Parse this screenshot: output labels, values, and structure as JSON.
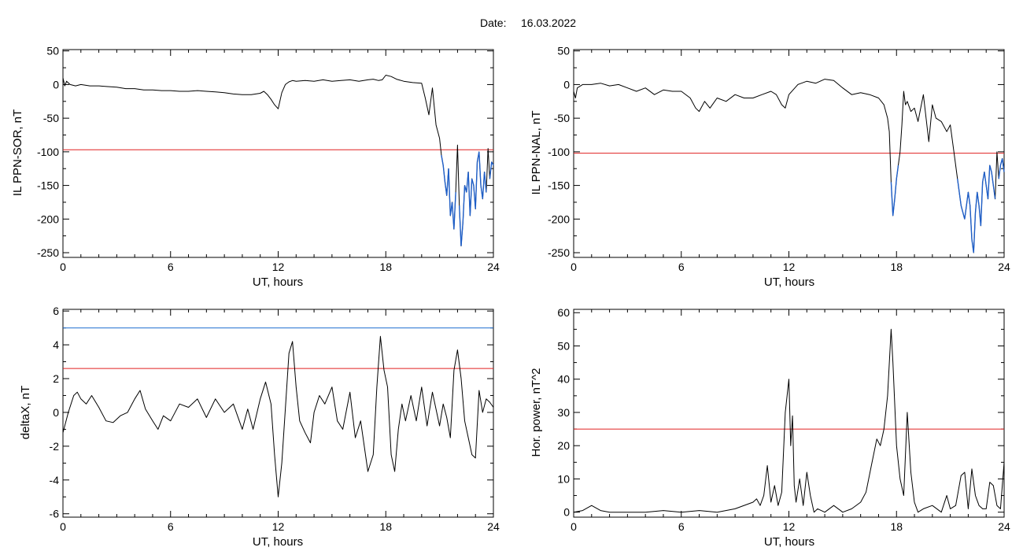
{
  "header": {
    "date_label": "Date:",
    "date_value": "16.03.2022"
  },
  "colors": {
    "trace": "#000000",
    "threshold_red": "#e02020",
    "threshold_blue": "#1f6fd0",
    "highlight_blue": "#1f5fc8",
    "frame": "#000000"
  },
  "chart_data": [
    {
      "id": "sor",
      "type": "line",
      "xlabel": "UT, hours",
      "ylabel": "IL PPN-SOR, nT",
      "xlim": [
        0,
        24
      ],
      "ylim": [
        -257,
        52
      ],
      "xticks": [
        "0",
        "6",
        "12",
        "18",
        "24"
      ],
      "yticks": [
        "50",
        "0",
        "-50",
        "-100",
        "-150",
        "-200",
        "-250"
      ],
      "threshold_red": -97,
      "highlight_below": -97,
      "x": [
        0,
        0.1,
        0.2,
        0.4,
        0.7,
        1,
        1.5,
        2,
        2.5,
        3,
        3.5,
        4,
        4.5,
        5,
        5.5,
        6,
        6.5,
        7,
        7.5,
        8,
        8.5,
        9,
        9.5,
        10,
        10.5,
        11,
        11.2,
        11.4,
        11.6,
        11.8,
        12,
        12.2,
        12.4,
        12.6,
        12.8,
        13,
        13.5,
        14,
        14.5,
        15,
        15.5,
        16,
        16.5,
        17,
        17.3,
        17.6,
        17.8,
        18,
        18.3,
        18.6,
        19,
        19.5,
        20,
        20.2,
        20.4,
        20.6,
        20.8,
        21,
        21.1,
        21.2,
        21.3,
        21.4,
        21.5,
        21.6,
        21.7,
        21.8,
        21.9,
        22,
        22.1,
        22.2,
        22.3,
        22.4,
        22.5,
        22.6,
        22.7,
        22.8,
        22.9,
        23,
        23.1,
        23.2,
        23.3,
        23.4,
        23.5,
        23.6,
        23.7,
        23.8,
        23.9,
        24
      ],
      "y": [
        10,
        -2,
        5,
        0,
        -2,
        0,
        -2,
        -2,
        -3,
        -4,
        -6,
        -6,
        -8,
        -8,
        -9,
        -9,
        -10,
        -10,
        -9,
        -10,
        -11,
        -12,
        -14,
        -15,
        -15,
        -13,
        -10,
        -15,
        -22,
        -30,
        -36,
        -12,
        0,
        4,
        6,
        5,
        6,
        5,
        7,
        5,
        6,
        7,
        5,
        7,
        8,
        6,
        7,
        14,
        12,
        8,
        5,
        3,
        2,
        -20,
        -45,
        -5,
        -60,
        -80,
        -105,
        -120,
        -145,
        -165,
        -125,
        -195,
        -175,
        -215,
        -160,
        -90,
        -180,
        -240,
        -205,
        -150,
        -160,
        -130,
        -195,
        -140,
        -150,
        -185,
        -115,
        -100,
        -150,
        -170,
        -130,
        -160,
        -95,
        -140,
        -115,
        -120
      ]
    },
    {
      "id": "nal",
      "type": "line",
      "xlabel": "UT, hours",
      "ylabel": "IL PPN-NAL, nT",
      "xlim": [
        0,
        24
      ],
      "ylim": [
        -257,
        52
      ],
      "xticks": [
        "0",
        "6",
        "12",
        "18",
        "24"
      ],
      "yticks": [
        "50",
        "0",
        "-50",
        "-100",
        "-150",
        "-200",
        "-250"
      ],
      "threshold_red": -102,
      "highlight_below": -102,
      "x": [
        0,
        0.1,
        0.2,
        0.5,
        1,
        1.5,
        2,
        2.5,
        3,
        3.5,
        4,
        4.5,
        5,
        5.5,
        6,
        6.5,
        6.8,
        7,
        7.3,
        7.6,
        8,
        8.5,
        9,
        9.5,
        10,
        10.5,
        11,
        11.3,
        11.6,
        11.8,
        12,
        12.5,
        13,
        13.5,
        14,
        14.5,
        15,
        15.5,
        16,
        16.5,
        17,
        17.3,
        17.5,
        17.6,
        17.7,
        17.8,
        17.9,
        18,
        18.1,
        18.2,
        18.3,
        18.4,
        18.5,
        18.6,
        18.8,
        19,
        19.2,
        19.5,
        19.8,
        20,
        20.2,
        20.5,
        20.8,
        21,
        21.2,
        21.4,
        21.6,
        21.8,
        22,
        22.1,
        22.2,
        22.3,
        22.4,
        22.5,
        22.6,
        22.7,
        22.8,
        22.9,
        23,
        23.1,
        23.2,
        23.3,
        23.4,
        23.5,
        23.6,
        23.7,
        23.8,
        23.9,
        24
      ],
      "y": [
        -10,
        -20,
        -5,
        0,
        0,
        2,
        -2,
        0,
        -5,
        -10,
        -5,
        -15,
        -8,
        -10,
        -10,
        -20,
        -35,
        -40,
        -25,
        -35,
        -20,
        -25,
        -15,
        -20,
        -20,
        -15,
        -10,
        -15,
        -30,
        -35,
        -15,
        0,
        5,
        2,
        8,
        6,
        -5,
        -15,
        -12,
        -15,
        -20,
        -30,
        -50,
        -70,
        -145,
        -195,
        -170,
        -140,
        -120,
        -100,
        -60,
        -10,
        -30,
        -25,
        -40,
        -35,
        -55,
        -15,
        -85,
        -30,
        -50,
        -55,
        -70,
        -60,
        -100,
        -140,
        -180,
        -200,
        -160,
        -180,
        -230,
        -250,
        -190,
        -160,
        -180,
        -210,
        -145,
        -130,
        -150,
        -170,
        -120,
        -130,
        -150,
        -170,
        -100,
        -140,
        -120,
        -110,
        -130
      ]
    },
    {
      "id": "deltax",
      "type": "line",
      "xlabel": "UT, hours",
      "ylabel": "deltaX, nT",
      "xlim": [
        0,
        24
      ],
      "ylim": [
        -6.2,
        6.1
      ],
      "xticks": [
        "0",
        "6",
        "12",
        "18",
        "24"
      ],
      "yticks": [
        "6",
        "4",
        "2",
        "0",
        "-2",
        "-4",
        "-6"
      ],
      "threshold_red": 2.6,
      "threshold_blue": 5.0,
      "x": [
        0,
        0.3,
        0.6,
        0.8,
        1,
        1.3,
        1.6,
        2,
        2.4,
        2.8,
        3.2,
        3.6,
        4,
        4.3,
        4.6,
        5,
        5.3,
        5.6,
        6,
        6.5,
        7,
        7.5,
        8,
        8.5,
        9,
        9.5,
        10,
        10.3,
        10.6,
        11,
        11.3,
        11.6,
        11.8,
        12,
        12.2,
        12.4,
        12.6,
        12.8,
        13,
        13.2,
        13.5,
        13.8,
        14,
        14.3,
        14.6,
        15,
        15.3,
        15.6,
        16,
        16.3,
        16.6,
        17,
        17.3,
        17.5,
        17.7,
        17.9,
        18.1,
        18.3,
        18.5,
        18.7,
        18.9,
        19.1,
        19.4,
        19.7,
        20,
        20.3,
        20.6,
        21,
        21.2,
        21.4,
        21.6,
        21.8,
        22,
        22.2,
        22.4,
        22.6,
        22.8,
        23,
        23.2,
        23.4,
        23.6,
        23.8,
        24
      ],
      "y": [
        -1.2,
        0,
        1,
        1.2,
        0.8,
        0.5,
        1.0,
        0.3,
        -0.5,
        -0.6,
        -0.2,
        0,
        0.8,
        1.3,
        0.2,
        -0.5,
        -1.0,
        -0.2,
        -0.5,
        0.5,
        0.3,
        0.8,
        -0.3,
        0.8,
        0,
        0.5,
        -1.0,
        0.2,
        -1.0,
        0.8,
        1.8,
        0.5,
        -2.5,
        -5.0,
        -3.0,
        0.2,
        3.5,
        4.2,
        1.5,
        -0.5,
        -1.2,
        -1.8,
        0,
        1.0,
        0.5,
        1.5,
        -0.5,
        -1.0,
        1.2,
        -1.5,
        -0.5,
        -3.5,
        -2.5,
        1.5,
        4.5,
        2.5,
        1.5,
        -2.5,
        -3.5,
        -1.0,
        0.5,
        -0.5,
        1.0,
        -0.5,
        1.5,
        -0.8,
        1.2,
        -0.8,
        0.5,
        -0.3,
        -1.5,
        2.5,
        3.7,
        2.0,
        -0.5,
        -1.5,
        -2.5,
        -2.7,
        1.3,
        0,
        0.8,
        0.6,
        0.3
      ]
    },
    {
      "id": "power",
      "type": "line",
      "xlabel": "UT, hours",
      "ylabel": "Hor. power, nT^2",
      "xlim": [
        0,
        24
      ],
      "ylim": [
        -1.5,
        61
      ],
      "xticks": [
        "0",
        "6",
        "12",
        "18",
        "24"
      ],
      "yticks": [
        "60",
        "50",
        "40",
        "30",
        "20",
        "10",
        "0"
      ],
      "threshold_red": 25,
      "x": [
        0,
        0.5,
        1,
        1.5,
        2,
        3,
        4,
        5,
        6,
        7,
        8,
        9,
        10,
        10.2,
        10.4,
        10.6,
        10.8,
        11,
        11.2,
        11.4,
        11.6,
        11.8,
        12,
        12.1,
        12.2,
        12.3,
        12.4,
        12.6,
        12.8,
        13,
        13.2,
        13.4,
        13.6,
        14,
        14.5,
        15,
        15.5,
        16,
        16.3,
        16.6,
        16.9,
        17.1,
        17.3,
        17.5,
        17.7,
        17.8,
        18,
        18.2,
        18.4,
        18.6,
        18.8,
        19,
        19.2,
        19.5,
        20,
        20.5,
        20.8,
        21,
        21.3,
        21.6,
        21.8,
        22,
        22.2,
        22.4,
        22.6,
        22.8,
        23,
        23.2,
        23.4,
        23.6,
        23.8,
        24
      ],
      "y": [
        0,
        0.5,
        2,
        0.5,
        0,
        0,
        0,
        0.5,
        0,
        0.5,
        0,
        1,
        3,
        4,
        2,
        5,
        14,
        3,
        8,
        2,
        6,
        30,
        40,
        20,
        29,
        8,
        3,
        10,
        2,
        12,
        5,
        0,
        1,
        0,
        2,
        0,
        1,
        3,
        6,
        14,
        22,
        20,
        25,
        35,
        55,
        45,
        20,
        10,
        5,
        30,
        12,
        3,
        0,
        1,
        2,
        0,
        5,
        1,
        2,
        11,
        12,
        1,
        13,
        5,
        2,
        1,
        1,
        9,
        8,
        2,
        1,
        15
      ]
    }
  ]
}
